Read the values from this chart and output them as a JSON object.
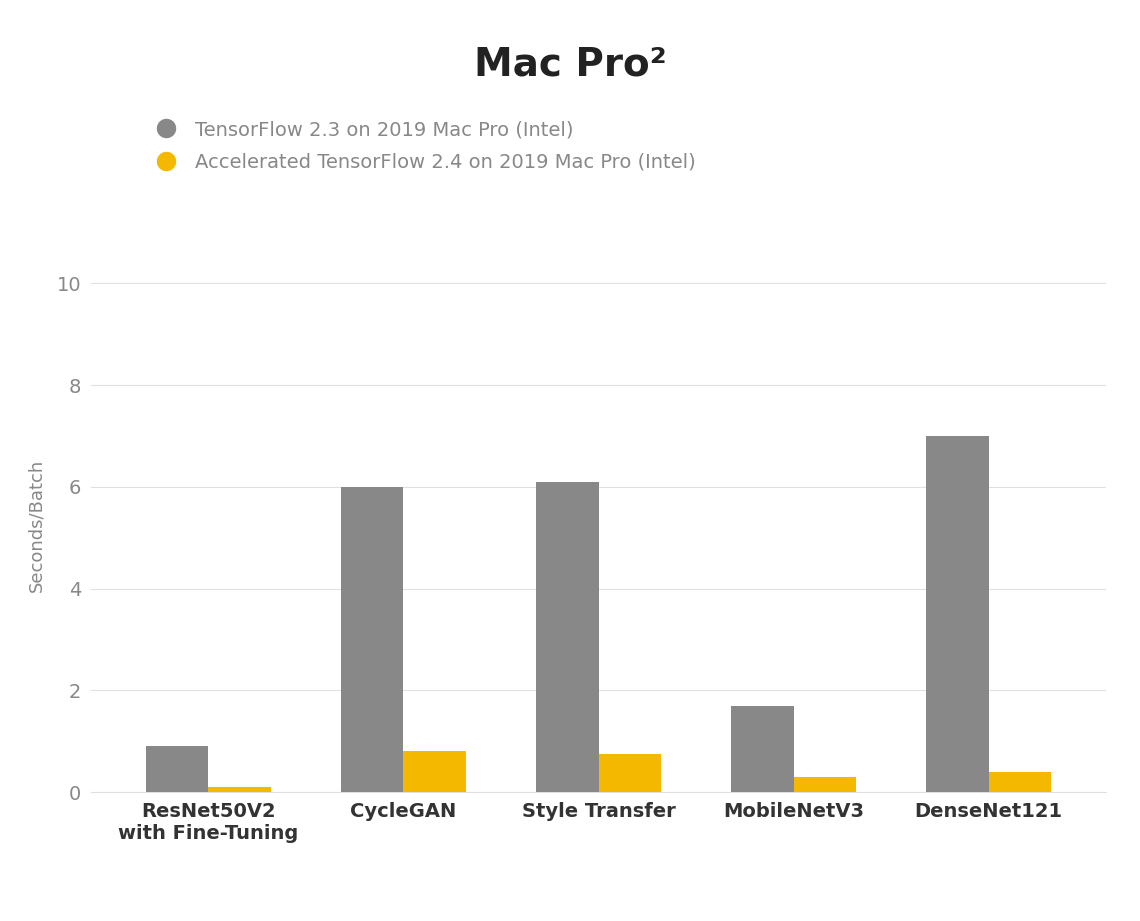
{
  "title": "Mac Pro²",
  "ylabel": "Seconds/Batch",
  "categories": [
    "ResNet50V2\nwith Fine-Tuning",
    "CycleGAN",
    "Style Transfer",
    "MobileNetV3",
    "DenseNet121"
  ],
  "series1_label": "TensorFlow 2.3 on 2019 Mac Pro (Intel)",
  "series2_label": "Accelerated TensorFlow 2.4 on 2019 Mac Pro (Intel)",
  "series1_values": [
    0.9,
    6.0,
    6.1,
    1.7,
    7.0
  ],
  "series2_values": [
    0.1,
    0.8,
    0.75,
    0.3,
    0.4
  ],
  "series1_color": "#888888",
  "series2_color": "#F5B800",
  "ylim": [
    0,
    10.5
  ],
  "yticks": [
    0,
    2,
    4,
    6,
    8,
    10
  ],
  "background_color": "#ffffff",
  "title_fontsize": 28,
  "legend_fontsize": 14,
  "legend_text_color": "#888888",
  "ylabel_fontsize": 13,
  "tick_fontsize": 14,
  "bar_width": 0.32,
  "grid_color": "#e0e0e0"
}
